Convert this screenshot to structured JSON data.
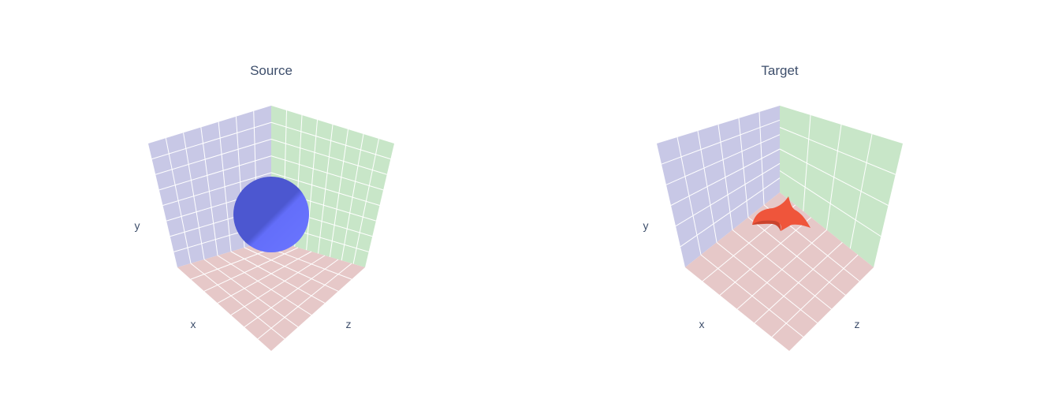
{
  "chart_data": [
    {
      "type": "scatter3d-surface",
      "title": "Source",
      "axes": {
        "x": "x",
        "y": "y",
        "z": "z"
      },
      "grid": true,
      "surface": {
        "shape": "sphere",
        "color": "#636efa"
      }
    },
    {
      "type": "scatter3d-surface",
      "title": "Target",
      "axes": {
        "x": "x",
        "y": "y",
        "z": "z"
      },
      "grid": true,
      "surface": {
        "shape": "dolphin",
        "color": "#ef553b"
      }
    }
  ],
  "colors": {
    "wall_xy": "#c8c8e6",
    "wall_yz": "#c8e6c8",
    "floor_xz": "#e6c8c8",
    "grid": "#ffffff",
    "text": "#3d4e6b"
  }
}
